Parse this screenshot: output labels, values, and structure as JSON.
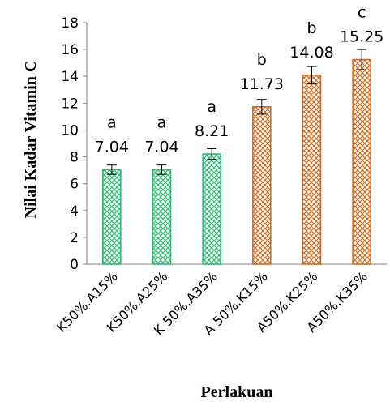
{
  "chart_data": {
    "type": "bar",
    "xlabel": "Perlakuan",
    "ylabel": "Nilai Kadar Vitamin C",
    "ylim": [
      0,
      18
    ],
    "yticks": [
      0,
      2,
      4,
      6,
      8,
      10,
      12,
      14,
      16,
      18
    ],
    "grid": false,
    "categories": [
      "K50%.A15%",
      "K50%.A25%",
      "K 50%.A35%",
      "A 50%.K15%",
      "A50%.K25%",
      "A50%.K35%"
    ],
    "values": [
      7.04,
      7.04,
      8.21,
      11.73,
      14.08,
      15.25
    ],
    "value_labels": [
      "7.04",
      "7.04",
      "8.21",
      "11.73",
      "14.08",
      "15.25"
    ],
    "error": [
      0.35,
      0.35,
      0.4,
      0.55,
      0.65,
      0.75
    ],
    "significance_letters": [
      "a",
      "a",
      "a",
      "b",
      "b",
      "c"
    ],
    "bar_colors": [
      "#2eb872",
      "#2eb872",
      "#2eb872",
      "#d2691e",
      "#d2691e",
      "#d2691e"
    ]
  }
}
